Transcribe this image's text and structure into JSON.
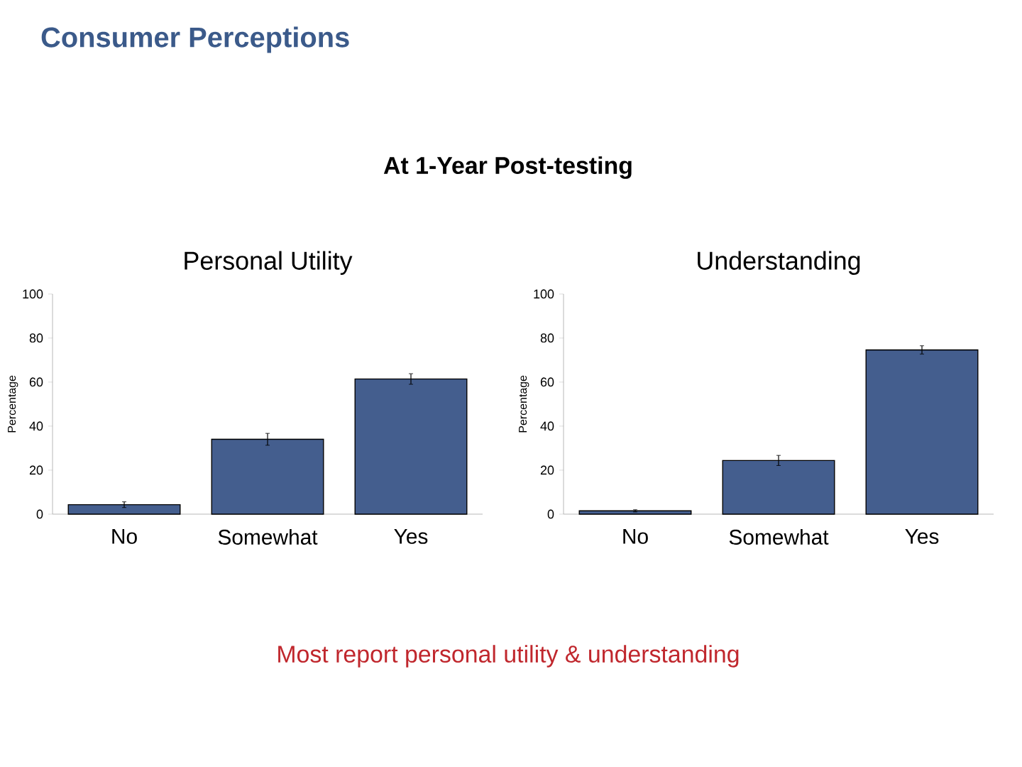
{
  "chart_data": [
    {
      "type": "bar",
      "title": "Personal Utility",
      "ylabel": "Percentage",
      "categories": [
        "No",
        "Somewhat",
        "Yes"
      ],
      "values": [
        4.3,
        34,
        61.4
      ],
      "errors": [
        1.3,
        2.7,
        2.4
      ],
      "color": "#445e8e",
      "ylim": [
        0,
        100
      ],
      "yticks": [
        0,
        20,
        40,
        60,
        80,
        100
      ],
      "annotations": [
        "Consumer Perceptions",
        "At 1-Year Post-testing",
        "Most report personal utility & understanding"
      ]
    },
    {
      "type": "bar",
      "title": "Understanding",
      "ylabel": "Percentage",
      "categories": [
        "No",
        "Somewhat",
        "Yes"
      ],
      "values": [
        1.5,
        24.4,
        74.6
      ],
      "errors": [
        0.5,
        2.3,
        1.9
      ],
      "color": "#445e8e",
      "ylim": [
        0,
        100
      ],
      "yticks": [
        0,
        20,
        40,
        60,
        80,
        100
      ]
    }
  ]
}
